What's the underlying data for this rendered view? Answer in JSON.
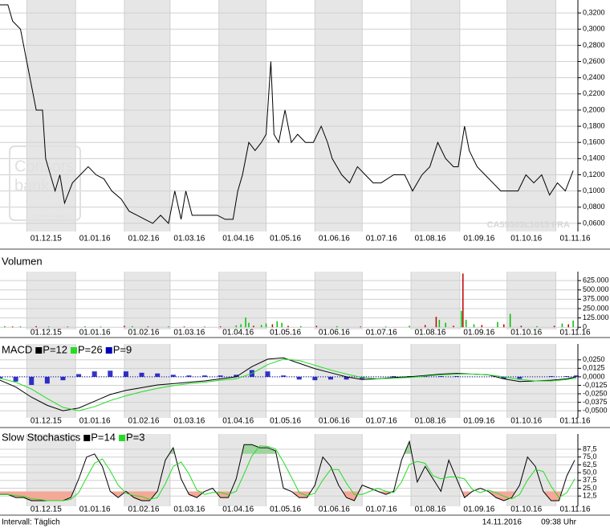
{
  "chart_data": [
    {
      "type": "line",
      "color": "#000000",
      "watermark": [
        "Consors",
        "bank",
        "by BNP PARIBAS"
      ],
      "annotation": "CA55303L1013 FRA",
      "xlim": [
        -17,
        350
      ],
      "xticks": [
        {
          "value": 0,
          "label": "01.12.15"
        },
        {
          "value": 31,
          "label": "01.01.16"
        },
        {
          "value": 62,
          "label": "01.02.16"
        },
        {
          "value": 91,
          "label": "01.03.16"
        },
        {
          "value": 122,
          "label": "01.04.16"
        },
        {
          "value": 152,
          "label": "01.05.16"
        },
        {
          "value": 183,
          "label": "01.06.16"
        },
        {
          "value": 213,
          "label": "01.07.16"
        },
        {
          "value": 244,
          "label": "01.08.16"
        },
        {
          "value": 275,
          "label": "01.09.16"
        },
        {
          "value": 305,
          "label": "01.10.16"
        },
        {
          "value": 336,
          "label": "01.11.16"
        }
      ],
      "ylim": [
        0.05,
        0.336
      ],
      "yticks": [
        {
          "value": 0.06,
          "label": "0,0600"
        },
        {
          "value": 0.08,
          "label": "0,0800"
        },
        {
          "value": 0.1,
          "label": "0,1000"
        },
        {
          "value": 0.12,
          "label": "0,1200"
        },
        {
          "value": 0.14,
          "label": "0,1400"
        },
        {
          "value": 0.16,
          "label": "0,1600"
        },
        {
          "value": 0.18,
          "label": "0,1800"
        },
        {
          "value": 0.2,
          "label": "0,2000"
        },
        {
          "value": 0.22,
          "label": "0,2200"
        },
        {
          "value": 0.24,
          "label": "0,2400"
        },
        {
          "value": 0.26,
          "label": "0,2600"
        },
        {
          "value": 0.28,
          "label": "0,2800"
        },
        {
          "value": 0.3,
          "label": "0,3000"
        },
        {
          "value": 0.32,
          "label": "0,3200"
        }
      ],
      "grid": true,
      "x": [
        -17,
        -12,
        -9,
        -4,
        0,
        3,
        6,
        10,
        12,
        15,
        18,
        21,
        24,
        29,
        34,
        39,
        44,
        49,
        54,
        60,
        65,
        70,
        75,
        80,
        85,
        90,
        94,
        98,
        101,
        105,
        110,
        116,
        121,
        126,
        131,
        134,
        137,
        141,
        145,
        149,
        152,
        155,
        157,
        160,
        164,
        168,
        172,
        177,
        182,
        187,
        191,
        194,
        200,
        205,
        210,
        215,
        220,
        225,
        233,
        240,
        245,
        251,
        256,
        261,
        266,
        271,
        274,
        278,
        281,
        286,
        291,
        296,
        301,
        307,
        312,
        317,
        322,
        327,
        332,
        337,
        342,
        347
      ],
      "values": [
        0.33,
        0.33,
        0.31,
        0.3,
        0.26,
        0.23,
        0.2,
        0.2,
        0.14,
        0.12,
        0.1,
        0.12,
        0.085,
        0.11,
        0.12,
        0.13,
        0.12,
        0.115,
        0.1,
        0.09,
        0.075,
        0.07,
        0.065,
        0.06,
        0.07,
        0.06,
        0.1,
        0.065,
        0.1,
        0.07,
        0.07,
        0.07,
        0.07,
        0.065,
        0.065,
        0.1,
        0.12,
        0.16,
        0.15,
        0.16,
        0.17,
        0.26,
        0.17,
        0.16,
        0.2,
        0.16,
        0.17,
        0.16,
        0.16,
        0.18,
        0.16,
        0.14,
        0.12,
        0.11,
        0.13,
        0.12,
        0.11,
        0.11,
        0.12,
        0.12,
        0.1,
        0.12,
        0.13,
        0.16,
        0.14,
        0.13,
        0.13,
        0.18,
        0.15,
        0.13,
        0.12,
        0.11,
        0.1,
        0.1,
        0.1,
        0.12,
        0.11,
        0.12,
        0.095,
        0.11,
        0.1,
        0.125
      ]
    },
    {
      "type": "bar",
      "title": "Volumen",
      "xlim": [
        -17,
        350
      ],
      "xticks": [
        {
          "value": 0,
          "label": "01.12.15"
        },
        {
          "value": 31,
          "label": "01.01.16"
        },
        {
          "value": 62,
          "label": "01.02.16"
        },
        {
          "value": 91,
          "label": "01.03.16"
        },
        {
          "value": 122,
          "label": "01.04.16"
        },
        {
          "value": 152,
          "label": "01.05.16"
        },
        {
          "value": 183,
          "label": "01.06.16"
        },
        {
          "value": 213,
          "label": "01.07.16"
        },
        {
          "value": 244,
          "label": "01.08.16"
        },
        {
          "value": 275,
          "label": "01.09.16"
        },
        {
          "value": 305,
          "label": "01.10.16"
        },
        {
          "value": 336,
          "label": "01.11.16"
        }
      ],
      "ylim": [
        -30000,
        745000
      ],
      "yticks": [
        0,
        {
          "value": 125000,
          "label": "125.000"
        },
        {
          "value": 250000,
          "label": "250.000"
        },
        {
          "value": 375000,
          "label": "375.000"
        },
        {
          "value": 500000,
          "label": "500.000"
        },
        {
          "value": 625000,
          "label": "625.000"
        }
      ],
      "grid": true,
      "x": [
        -14,
        -9,
        -4,
        6,
        14,
        26,
        37,
        47,
        62,
        67,
        77,
        90,
        100,
        113,
        123,
        133,
        136,
        139,
        141,
        144,
        149,
        152,
        156,
        159,
        162,
        166,
        174,
        184,
        197,
        212,
        228,
        243,
        253,
        260,
        262,
        266,
        271,
        276,
        277,
        279,
        284,
        289,
        299,
        303,
        307,
        314,
        324,
        335,
        340,
        344,
        347
      ],
      "values": [
        15000,
        10000,
        12000,
        15000,
        10000,
        8000,
        12000,
        10000,
        20000,
        15000,
        10000,
        12000,
        10000,
        10000,
        12000,
        25000,
        40000,
        130000,
        60000,
        20000,
        30000,
        50000,
        40000,
        80000,
        60000,
        20000,
        15000,
        20000,
        15000,
        10000,
        10000,
        20000,
        30000,
        140000,
        100000,
        60000,
        20000,
        220000,
        720000,
        100000,
        40000,
        30000,
        70000,
        40000,
        180000,
        20000,
        15000,
        20000,
        50000,
        40000,
        90000
      ],
      "colors": [
        "#00c000",
        "#c00000",
        "#00c000",
        "#c00000",
        "#00c000",
        "#c00000",
        "#00c000",
        "#00c000",
        "#c00000",
        "#00c000",
        "#c00000",
        "#00c000",
        "#c00000",
        "#00c000",
        "#c00000",
        "#00c000",
        "#00c000",
        "#00c000",
        "#00c000",
        "#c00000",
        "#00c000",
        "#00c000",
        "#c00000",
        "#00c000",
        "#00c000",
        "#c00000",
        "#00c000",
        "#c00000",
        "#00c000",
        "#c00000",
        "#00c000",
        "#00c000",
        "#c00000",
        "#c00000",
        "#00c000",
        "#00c000",
        "#c00000",
        "#00c000",
        "#c00000",
        "#00c000",
        "#00c000",
        "#c00000",
        "#00c000",
        "#c00000",
        "#00c000",
        "#c00000",
        "#00c000",
        "#c00000",
        "#00c000",
        "#c00000",
        "#00c000"
      ]
    },
    {
      "type": "line",
      "title": "MACD",
      "xlim": [
        -17,
        350
      ],
      "xticks": [
        {
          "value": 0,
          "label": "01.12.15"
        },
        {
          "value": 31,
          "label": "01.01.16"
        },
        {
          "value": 62,
          "label": "01.02.16"
        },
        {
          "value": 91,
          "label": "01.03.16"
        },
        {
          "value": 122,
          "label": "01.04.16"
        },
        {
          "value": 152,
          "label": "01.05.16"
        },
        {
          "value": 183,
          "label": "01.06.16"
        },
        {
          "value": 213,
          "label": "01.07.16"
        },
        {
          "value": 244,
          "label": "01.08.16"
        },
        {
          "value": 275,
          "label": "01.09.16"
        },
        {
          "value": 305,
          "label": "01.10.16"
        },
        {
          "value": 336,
          "label": "01.11.16"
        }
      ],
      "ylim": [
        -0.0605,
        0.0484
      ],
      "yticks": [
        {
          "value": 0.025,
          "label": "0,0250"
        },
        {
          "value": 0.0125,
          "label": "0,0125"
        },
        {
          "value": 0,
          "label": "0,0000"
        },
        {
          "value": -0.0125,
          "label": "-0,0125"
        },
        {
          "value": -0.025,
          "label": "-0,0250"
        },
        {
          "value": -0.0375,
          "label": "-0,0375"
        },
        {
          "value": -0.05,
          "label": "-0,0500"
        }
      ],
      "grid": true,
      "x": [
        -17,
        -7,
        3,
        13,
        23,
        33,
        43,
        53,
        63,
        73,
        83,
        93,
        103,
        113,
        123,
        133,
        143,
        153,
        163,
        173,
        183,
        193,
        203,
        213,
        223,
        233,
        243,
        253,
        263,
        273,
        283,
        293,
        303,
        313,
        323,
        333,
        343,
        349
      ],
      "series": [
        {
          "name": "P=12",
          "color": "#000000",
          "values": [
            -0.005,
            -0.015,
            -0.03,
            -0.042,
            -0.05,
            -0.046,
            -0.036,
            -0.026,
            -0.02,
            -0.016,
            -0.012,
            -0.01,
            -0.008,
            -0.006,
            -0.003,
            0.0,
            0.015,
            0.026,
            0.028,
            0.02,
            0.012,
            0.006,
            0.0,
            -0.004,
            -0.003,
            -0.001,
            0.0,
            0.002,
            0.004,
            0.005,
            0.004,
            0.003,
            -0.003,
            -0.007,
            -0.006,
            -0.005,
            -0.003,
            0.0
          ]
        },
        {
          "name": "P=26",
          "color": "#22dd22",
          "values": [
            -0.002,
            -0.008,
            -0.018,
            -0.032,
            -0.045,
            -0.05,
            -0.044,
            -0.035,
            -0.028,
            -0.022,
            -0.017,
            -0.013,
            -0.01,
            -0.008,
            -0.005,
            -0.003,
            0.005,
            0.018,
            0.026,
            0.024,
            0.017,
            0.01,
            0.004,
            -0.001,
            -0.003,
            -0.002,
            -0.001,
            0.001,
            0.003,
            0.004,
            0.004,
            0.003,
            0.0,
            -0.004,
            -0.006,
            -0.006,
            -0.004,
            -0.002
          ]
        },
        {
          "name": "P=9",
          "color": "#0000bb",
          "kind": "bar",
          "values": [
            -0.003,
            -0.007,
            -0.012,
            -0.01,
            -0.005,
            0.004,
            0.008,
            0.009,
            0.008,
            0.006,
            0.005,
            0.003,
            0.002,
            0.002,
            0.002,
            0.003,
            0.01,
            0.008,
            0.002,
            -0.004,
            -0.005,
            -0.004,
            -0.004,
            -0.003,
            0.0,
            0.001,
            0.001,
            0.001,
            0.001,
            0.001,
            0.0,
            0.0,
            -0.003,
            -0.003,
            0.0,
            0.001,
            0.001,
            0.002
          ]
        }
      ]
    },
    {
      "type": "line",
      "title": "Slow Stochastics",
      "xlim": [
        -17,
        350
      ],
      "xticks": [
        {
          "value": 0,
          "label": "01.12.15"
        },
        {
          "value": 31,
          "label": "01.01.16"
        },
        {
          "value": 62,
          "label": "01.02.16"
        },
        {
          "value": 91,
          "label": "01.03.16"
        },
        {
          "value": 122,
          "label": "01.04.16"
        },
        {
          "value": 152,
          "label": "01.05.16"
        },
        {
          "value": 183,
          "label": "01.06.16"
        },
        {
          "value": 213,
          "label": "01.07.16"
        },
        {
          "value": 244,
          "label": "01.08.16"
        },
        {
          "value": 275,
          "label": "01.09.16"
        },
        {
          "value": 305,
          "label": "01.10.16"
        },
        {
          "value": 336,
          "label": "01.11.16"
        }
      ],
      "ylim": [
        -4,
        112
      ],
      "yticks": [
        {
          "value": 87.5,
          "label": "87,5"
        },
        {
          "value": 75,
          "label": "75,0"
        },
        {
          "value": 62.5,
          "label": "62,5"
        },
        {
          "value": 50,
          "label": "50,0"
        },
        {
          "value": 37.5,
          "label": "37,5"
        },
        {
          "value": 25,
          "label": "25,0"
        },
        {
          "value": 12.5,
          "label": "12,5"
        }
      ],
      "grid": true,
      "oversold": 20,
      "overbought": 80,
      "oversold_color": "#f4a898",
      "overbought_color": "#9fd49f",
      "x": [
        -17,
        -12,
        -7,
        -2,
        3,
        8,
        13,
        18,
        23,
        28,
        33,
        38,
        43,
        48,
        53,
        58,
        63,
        68,
        73,
        78,
        83,
        88,
        93,
        98,
        103,
        108,
        113,
        118,
        123,
        128,
        133,
        138,
        143,
        148,
        153,
        158,
        163,
        168,
        173,
        178,
        183,
        188,
        193,
        198,
        203,
        208,
        213,
        218,
        223,
        228,
        233,
        238,
        243,
        248,
        253,
        258,
        263,
        268,
        273,
        278,
        283,
        288,
        293,
        298,
        303,
        308,
        313,
        318,
        323,
        328,
        333,
        338,
        343,
        348
      ],
      "series": [
        {
          "name": "P=14",
          "color": "#000000",
          "values": [
            15,
            15,
            10,
            10,
            5,
            5,
            5,
            5,
            5,
            10,
            40,
            75,
            80,
            60,
            20,
            10,
            20,
            10,
            5,
            5,
            20,
            70,
            90,
            40,
            15,
            10,
            20,
            25,
            10,
            10,
            40,
            95,
            95,
            90,
            90,
            85,
            25,
            20,
            10,
            10,
            30,
            75,
            60,
            30,
            10,
            5,
            30,
            25,
            20,
            15,
            20,
            70,
            100,
            35,
            60,
            40,
            20,
            70,
            40,
            10,
            20,
            25,
            20,
            10,
            5,
            10,
            30,
            75,
            60,
            20,
            5,
            5,
            45,
            70
          ]
        },
        {
          "name": "P=3",
          "color": "#22dd22",
          "values": [
            15,
            15,
            13,
            12,
            8,
            7,
            5,
            5,
            5,
            7,
            18,
            42,
            65,
            72,
            53,
            30,
            17,
            13,
            12,
            7,
            10,
            32,
            60,
            67,
            48,
            22,
            15,
            18,
            18,
            15,
            20,
            48,
            77,
            93,
            92,
            88,
            67,
            43,
            18,
            13,
            17,
            38,
            55,
            55,
            33,
            15,
            15,
            20,
            25,
            20,
            18,
            35,
            63,
            68,
            65,
            45,
            40,
            43,
            43,
            40,
            23,
            18,
            22,
            18,
            12,
            8,
            15,
            38,
            55,
            52,
            28,
            10,
            18,
            40
          ]
        }
      ]
    }
  ],
  "footer": {
    "interval": "Intervall: Täglich",
    "date": "14.11.2016",
    "time": "09:38 Uhr"
  }
}
